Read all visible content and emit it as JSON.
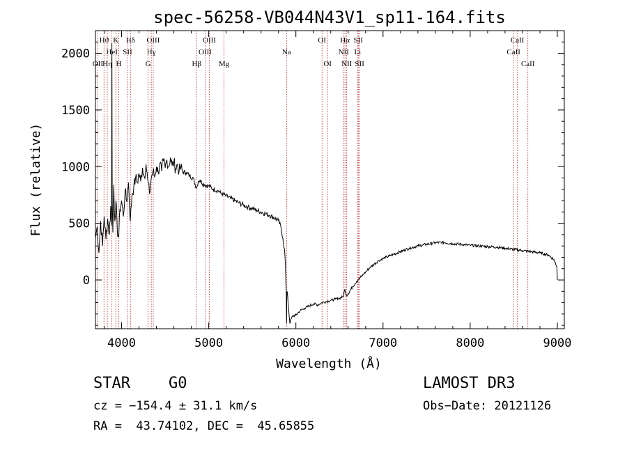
{
  "chart_data": {
    "type": "line",
    "title": "spec-56258-VB044N43V1_sp11-164.fits",
    "xlabel": "Wavelength (Å)",
    "ylabel": "Flux (relative)",
    "xlim": [
      3700,
      9080
    ],
    "ylim": [
      -430,
      2200
    ],
    "xticks": [
      4000,
      5000,
      6000,
      7000,
      8000,
      9000
    ],
    "yticks": [
      0,
      500,
      1000,
      1500,
      2000
    ],
    "grid": false,
    "series": [
      {
        "name": "spectrum",
        "points": [
          [
            3700,
            370
          ],
          [
            3720,
            470
          ],
          [
            3740,
            240
          ],
          [
            3760,
            520
          ],
          [
            3780,
            300
          ],
          [
            3800,
            560
          ],
          [
            3820,
            360
          ],
          [
            3840,
            540
          ],
          [
            3860,
            400
          ],
          [
            3875,
            650
          ],
          [
            3885,
            480
          ],
          [
            3889,
            2090
          ],
          [
            3893,
            700
          ],
          [
            3900,
            420
          ],
          [
            3910,
            840
          ],
          [
            3922,
            520
          ],
          [
            3935,
            700
          ],
          [
            3950,
            450
          ],
          [
            3968,
            380
          ],
          [
            3980,
            620
          ],
          [
            4000,
            700
          ],
          [
            4020,
            560
          ],
          [
            4040,
            780
          ],
          [
            4060,
            690
          ],
          [
            4080,
            860
          ],
          [
            4100,
            520
          ],
          [
            4120,
            760
          ],
          [
            4140,
            820
          ],
          [
            4160,
            900
          ],
          [
            4180,
            860
          ],
          [
            4200,
            940
          ],
          [
            4220,
            870
          ],
          [
            4240,
            990
          ],
          [
            4260,
            910
          ],
          [
            4280,
            1020
          ],
          [
            4300,
            880
          ],
          [
            4320,
            760
          ],
          [
            4340,
            900
          ],
          [
            4360,
            960
          ],
          [
            4380,
            910
          ],
          [
            4400,
            1000
          ],
          [
            4420,
            950
          ],
          [
            4440,
            1030
          ],
          [
            4460,
            960
          ],
          [
            4480,
            1050
          ],
          [
            4500,
            990
          ],
          [
            4520,
            1060
          ],
          [
            4540,
            1000
          ],
          [
            4560,
            1080
          ],
          [
            4580,
            1010
          ],
          [
            4600,
            1040
          ],
          [
            4620,
            980
          ],
          [
            4640,
            1020
          ],
          [
            4660,
            960
          ],
          [
            4680,
            990
          ],
          [
            4700,
            950
          ],
          [
            4740,
            950
          ],
          [
            4780,
            920
          ],
          [
            4820,
            900
          ],
          [
            4860,
            810
          ],
          [
            4880,
            870
          ],
          [
            4900,
            880
          ],
          [
            4950,
            840
          ],
          [
            5000,
            830
          ],
          [
            5050,
            800
          ],
          [
            5100,
            790
          ],
          [
            5150,
            760
          ],
          [
            5200,
            740
          ],
          [
            5250,
            720
          ],
          [
            5300,
            700
          ],
          [
            5350,
            680
          ],
          [
            5400,
            660
          ],
          [
            5450,
            645
          ],
          [
            5500,
            630
          ],
          [
            5550,
            615
          ],
          [
            5600,
            600
          ],
          [
            5650,
            585
          ],
          [
            5700,
            570
          ],
          [
            5750,
            550
          ],
          [
            5800,
            525
          ],
          [
            5830,
            460
          ],
          [
            5850,
            370
          ],
          [
            5870,
            270
          ],
          [
            5880,
            120
          ],
          [
            5890,
            -120
          ],
          [
            5893,
            -380
          ],
          [
            5896,
            -120
          ],
          [
            5900,
            -100
          ],
          [
            5930,
            -380
          ],
          [
            5960,
            -320
          ],
          [
            6000,
            -310
          ],
          [
            6050,
            -270
          ],
          [
            6100,
            -250
          ],
          [
            6150,
            -230
          ],
          [
            6200,
            -210
          ],
          [
            6250,
            -220
          ],
          [
            6300,
            -200
          ],
          [
            6350,
            -190
          ],
          [
            6400,
            -180
          ],
          [
            6450,
            -170
          ],
          [
            6500,
            -160
          ],
          [
            6540,
            -150
          ],
          [
            6563,
            -80
          ],
          [
            6580,
            -140
          ],
          [
            6600,
            -120
          ],
          [
            6650,
            -60
          ],
          [
            6700,
            -10
          ],
          [
            6750,
            30
          ],
          [
            6800,
            70
          ],
          [
            6850,
            110
          ],
          [
            6900,
            140
          ],
          [
            6950,
            170
          ],
          [
            7000,
            190
          ],
          [
            7100,
            220
          ],
          [
            7200,
            250
          ],
          [
            7300,
            280
          ],
          [
            7400,
            300
          ],
          [
            7500,
            315
          ],
          [
            7600,
            330
          ],
          [
            7700,
            330
          ],
          [
            7800,
            320
          ],
          [
            7900,
            315
          ],
          [
            8000,
            305
          ],
          [
            8100,
            300
          ],
          [
            8200,
            295
          ],
          [
            8300,
            290
          ],
          [
            8400,
            280
          ],
          [
            8500,
            270
          ],
          [
            8600,
            260
          ],
          [
            8700,
            250
          ],
          [
            8800,
            240
          ],
          [
            8900,
            220
          ],
          [
            8960,
            180
          ],
          [
            8995,
            120
          ],
          [
            9000,
            0
          ]
        ]
      }
    ],
    "lines": [
      {
        "label": "Hϑ",
        "wavelength": 3798,
        "row": 1
      },
      {
        "label": "OII",
        "wavelength": 3727,
        "row": 3
      },
      {
        "label": "Hη",
        "wavelength": 3836,
        "row": 3
      },
      {
        "label": "HeI",
        "wavelength": 3889,
        "row": 2
      },
      {
        "label": "K",
        "wavelength": 3934,
        "row": 1
      },
      {
        "label": "H",
        "wavelength": 3968,
        "row": 3
      },
      {
        "label": "SII",
        "wavelength": 4068,
        "row": 2
      },
      {
        "label": "Hδ",
        "wavelength": 4102,
        "row": 1
      },
      {
        "label": "OIII",
        "wavelength": 4363,
        "row": 1
      },
      {
        "label": "Hγ",
        "wavelength": 4341,
        "row": 2
      },
      {
        "label": "G",
        "wavelength": 4304,
        "row": 3
      },
      {
        "label": "Hβ",
        "wavelength": 4861,
        "row": 3
      },
      {
        "label": "OIII",
        "wavelength": 5007,
        "row": 1
      },
      {
        "label": "OIII",
        "wavelength": 4959,
        "row": 2
      },
      {
        "label": "Mg",
        "wavelength": 5175,
        "row": 3
      },
      {
        "label": "Na",
        "wavelength": 5893,
        "row": 2
      },
      {
        "label": "OI",
        "wavelength": 6300,
        "row": 1
      },
      {
        "label": "OI",
        "wavelength": 6363,
        "row": 3
      },
      {
        "label": "Hα",
        "wavelength": 6563,
        "row": 1
      },
      {
        "label": "NII",
        "wavelength": 6548,
        "row": 2
      },
      {
        "label": "NII",
        "wavelength": 6583,
        "row": 3
      },
      {
        "label": "SII",
        "wavelength": 6716,
        "row": 1
      },
      {
        "label": "Li",
        "wavelength": 6708,
        "row": 2
      },
      {
        "label": "SII",
        "wavelength": 6731,
        "row": 3
      },
      {
        "label": "CaII",
        "wavelength": 8542,
        "row": 1
      },
      {
        "label": "CaII",
        "wavelength": 8498,
        "row": 2
      },
      {
        "label": "CaII",
        "wavelength": 8662,
        "row": 3
      }
    ]
  },
  "info": {
    "object_class": "STAR",
    "subclass": "G0",
    "survey": "LAMOST DR3",
    "cz": "cz = −154.4 ± 31.1 km/s",
    "obs_date": "Obs−Date: 20121126",
    "coords": "RA =  43.74102, DEC =  45.65855"
  }
}
